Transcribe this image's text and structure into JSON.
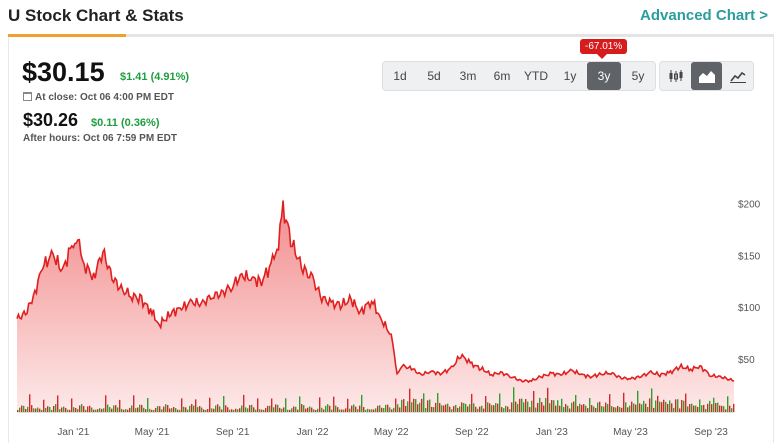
{
  "header": {
    "title": "U Stock Chart & Stats",
    "advanced_link": "Advanced Chart >"
  },
  "quote": {
    "price": "$30.15",
    "change": "$1.41 (4.91%)",
    "close_label": "At close: Oct 06 4:00 PM EDT",
    "after_price": "$30.26",
    "after_change": "$0.11 (0.36%)",
    "after_label": "After hours: Oct 06 7:59 PM EDT"
  },
  "ranges": [
    "1d",
    "5d",
    "3m",
    "6m",
    "YTD",
    "1y",
    "3y",
    "5y"
  ],
  "active_range": "3y",
  "range_return_badge": "-67.01%",
  "chart_types": [
    "candlestick-icon",
    "area-chart-icon",
    "line-chart-icon"
  ],
  "active_chart_type": "area-chart-icon",
  "colors": {
    "line": "#e02020",
    "area_top": "#f28b8b",
    "area_bottom": "#fde9e9",
    "vol_up": "#2ca02c",
    "vol_down": "#d62728",
    "accent": "#2a9d9d"
  },
  "chart_data": {
    "type": "area",
    "title": "",
    "y_ticks": [
      "$200",
      "$150",
      "$100",
      "$50"
    ],
    "y_tick_values": [
      200,
      150,
      100,
      50
    ],
    "ylim": [
      0,
      210
    ],
    "x_ticks": [
      "Jan '21",
      "May '21",
      "Sep '21",
      "Jan '22",
      "May '22",
      "Sep '22",
      "Jan '23",
      "May '23",
      "Sep '23"
    ],
    "x_tick_dates": [
      "2021-01-01",
      "2021-05-01",
      "2021-09-01",
      "2022-01-01",
      "2022-05-01",
      "2022-09-01",
      "2023-01-01",
      "2023-05-01",
      "2023-09-01"
    ],
    "x_range": [
      "2020-10-07",
      "2023-10-06"
    ],
    "series": [
      {
        "dates": [
          "2020-10-07",
          "2020-10-20",
          "2020-11-01",
          "2020-11-15",
          "2020-12-01",
          "2020-12-15",
          "2021-01-01",
          "2021-01-10",
          "2021-01-20",
          "2021-02-01",
          "2021-02-15",
          "2021-03-01",
          "2021-03-15",
          "2021-04-01",
          "2021-04-15",
          "2021-05-01",
          "2021-05-12",
          "2021-06-01",
          "2021-06-15",
          "2021-07-01",
          "2021-07-15",
          "2021-08-01",
          "2021-08-15",
          "2021-09-01",
          "2021-09-15",
          "2021-10-01",
          "2021-10-15",
          "2021-11-01",
          "2021-11-10",
          "2021-11-17",
          "2021-12-01",
          "2021-12-15",
          "2022-01-01",
          "2022-01-15",
          "2022-02-01",
          "2022-02-15",
          "2022-03-01",
          "2022-03-15",
          "2022-04-01",
          "2022-04-15",
          "2022-05-01",
          "2022-05-10",
          "2022-05-20",
          "2022-06-01",
          "2022-06-15",
          "2022-07-01",
          "2022-07-15",
          "2022-08-01",
          "2022-08-15",
          "2022-09-01",
          "2022-09-15",
          "2022-10-01",
          "2022-10-15",
          "2022-11-01",
          "2022-11-15",
          "2022-12-01",
          "2022-12-15",
          "2023-01-01",
          "2023-01-15",
          "2023-02-01",
          "2023-02-15",
          "2023-03-01",
          "2023-03-15",
          "2023-04-01",
          "2023-04-15",
          "2023-05-01",
          "2023-05-15",
          "2023-06-01",
          "2023-06-15",
          "2023-07-01",
          "2023-07-15",
          "2023-08-01",
          "2023-08-15",
          "2023-09-01",
          "2023-09-15",
          "2023-10-06"
        ],
        "values": [
          90,
          95,
          110,
          140,
          152,
          135,
          165,
          158,
          140,
          130,
          155,
          130,
          118,
          112,
          108,
          96,
          84,
          96,
          100,
          106,
          104,
          112,
          114,
          122,
          132,
          128,
          126,
          144,
          165,
          196,
          162,
          140,
          128,
          110,
          104,
          104,
          108,
          96,
          108,
          90,
          74,
          38,
          44,
          42,
          36,
          39,
          37,
          42,
          55,
          46,
          42,
          36,
          38,
          34,
          30,
          30,
          34,
          37,
          36,
          40,
          36,
          34,
          36,
          38,
          33,
          32,
          34,
          38,
          36,
          38,
          44,
          41,
          44,
          35,
          34,
          30
        ]
      }
    ],
    "volume_note": "volume bars along the bottom, green for up days and red for down days"
  }
}
